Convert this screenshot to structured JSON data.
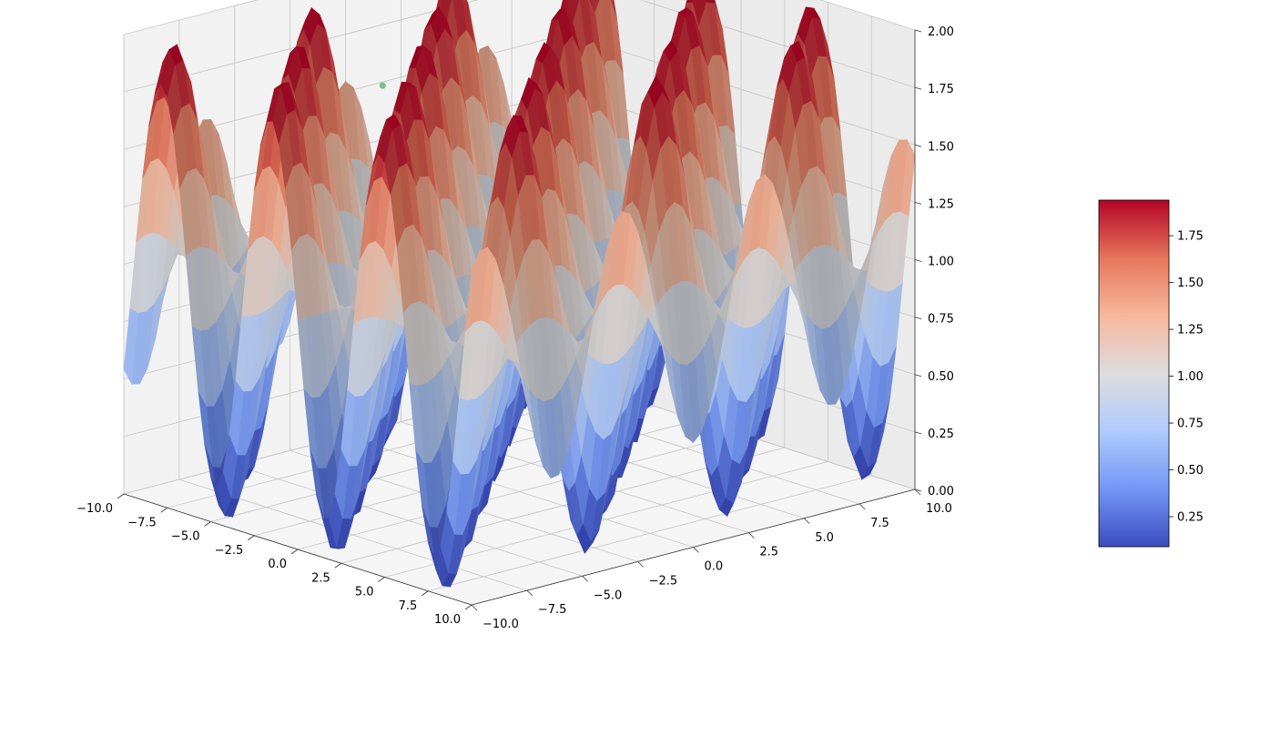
{
  "chart_data": {
    "type": "surface3d",
    "title": "",
    "function_grid": {
      "x_range": [
        -10,
        10
      ],
      "y_range": [
        -10,
        10
      ],
      "z_description": "sin(x)*cos(y)+1 style egg-crate surface",
      "z_range": [
        0,
        2
      ]
    },
    "x_axis": {
      "label": "",
      "ticks": [
        -10.0,
        -7.5,
        -5.0,
        -2.5,
        0.0,
        2.5,
        5.0,
        7.5,
        10.0
      ],
      "tick_labels": [
        "−10.0",
        "−7.5",
        "−5.0",
        "−2.5",
        "0.0",
        "2.5",
        "5.0",
        "7.5",
        "10.0"
      ]
    },
    "y_axis": {
      "label": "",
      "ticks": [
        -10.0,
        -7.5,
        -5.0,
        -2.5,
        0.0,
        2.5,
        5.0,
        7.5,
        10.0
      ],
      "tick_labels": [
        "−10.0",
        "−7.5",
        "−5.0",
        "−2.5",
        "0.0",
        "2.5",
        "5.0",
        "7.5",
        "10.0"
      ]
    },
    "z_axis": {
      "label": "",
      "ticks": [
        0.0,
        0.25,
        0.5,
        0.75,
        1.0,
        1.25,
        1.5,
        1.75,
        2.0
      ],
      "tick_labels": [
        "0.00",
        "0.25",
        "0.50",
        "0.75",
        "1.00",
        "1.25",
        "1.50",
        "1.75",
        "2.00"
      ]
    },
    "colormap": "coolwarm",
    "colormap_stops": [
      "#3b4cc0",
      "#7396f5",
      "#b0cbfc",
      "#dddcdc",
      "#f6b89c",
      "#e7755b",
      "#b40426"
    ],
    "colorbar": {
      "range": [
        0.09,
        1.94
      ],
      "ticks": [
        0.25,
        0.5,
        0.75,
        1.0,
        1.25,
        1.5,
        1.75
      ],
      "tick_labels": [
        "0.25",
        "0.50",
        "0.75",
        "1.00",
        "1.25",
        "1.50",
        "1.75"
      ]
    },
    "marker": {
      "color": "#7fbf7f"
    },
    "grid": true,
    "pane_color": "#f2f2f2"
  }
}
